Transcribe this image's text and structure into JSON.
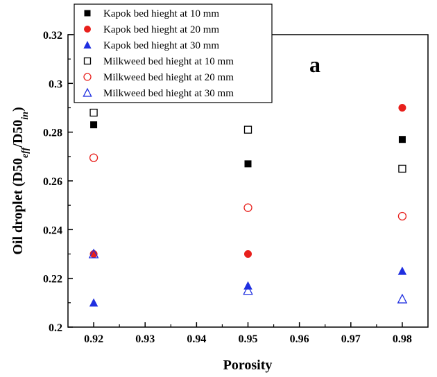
{
  "chart_data": {
    "type": "scatter",
    "panel_label": "a",
    "xlabel": "Porosity",
    "ylabel": {
      "prefix": "Oil droplet (D50",
      "sub1": "eff",
      "middle": "/D50",
      "sub2": "in",
      "suffix": ")"
    },
    "xlim": [
      0.915,
      0.985
    ],
    "ylim": [
      0.2,
      0.32
    ],
    "x_ticks": [
      0.92,
      0.93,
      0.94,
      0.95,
      0.96,
      0.97,
      0.98
    ],
    "x_tick_labels": [
      "0.92",
      "0.93",
      "0.94",
      "0.95",
      "0.96",
      "0.97",
      "0.98"
    ],
    "y_ticks": [
      0.2,
      0.22,
      0.24,
      0.26,
      0.28,
      0.3,
      0.32
    ],
    "y_tick_labels": [
      "0.2",
      "0.22",
      "0.24",
      "0.26",
      "0.28",
      "0.3",
      "0.32"
    ],
    "grid": false,
    "legend_position": "top-left",
    "series": [
      {
        "name": "Kapok bed hieght at 10 mm",
        "marker": "square",
        "filled": true,
        "color": "#000000",
        "x": [
          0.92,
          0.95,
          0.98
        ],
        "y": [
          0.283,
          0.267,
          0.277
        ]
      },
      {
        "name": "Kapok bed hieght at 20 mm",
        "marker": "circle",
        "filled": true,
        "color": "#e8201c",
        "x": [
          0.92,
          0.95,
          0.98
        ],
        "y": [
          0.23,
          0.23,
          0.29
        ]
      },
      {
        "name": "Kapok bed hieght at 30 mm",
        "marker": "triangle",
        "filled": true,
        "color": "#1f2fe0",
        "x": [
          0.92,
          0.95,
          0.98
        ],
        "y": [
          0.21,
          0.217,
          0.223
        ]
      },
      {
        "name": "Milkweed bed hieght at 10 mm",
        "marker": "square",
        "filled": false,
        "color": "#000000",
        "x": [
          0.92,
          0.95,
          0.98
        ],
        "y": [
          0.288,
          0.281,
          0.265
        ]
      },
      {
        "name": "Milkweed bed hieght at 20 mm",
        "marker": "circle",
        "filled": false,
        "color": "#e8201c",
        "x": [
          0.92,
          0.95,
          0.98
        ],
        "y": [
          0.2695,
          0.249,
          0.2455
        ]
      },
      {
        "name": "Milkweed bed hieght at 30 mm",
        "marker": "triangle",
        "filled": false,
        "color": "#1f2fe0",
        "x": [
          0.92,
          0.95,
          0.98
        ],
        "y": [
          0.23,
          0.215,
          0.2115
        ]
      }
    ]
  }
}
